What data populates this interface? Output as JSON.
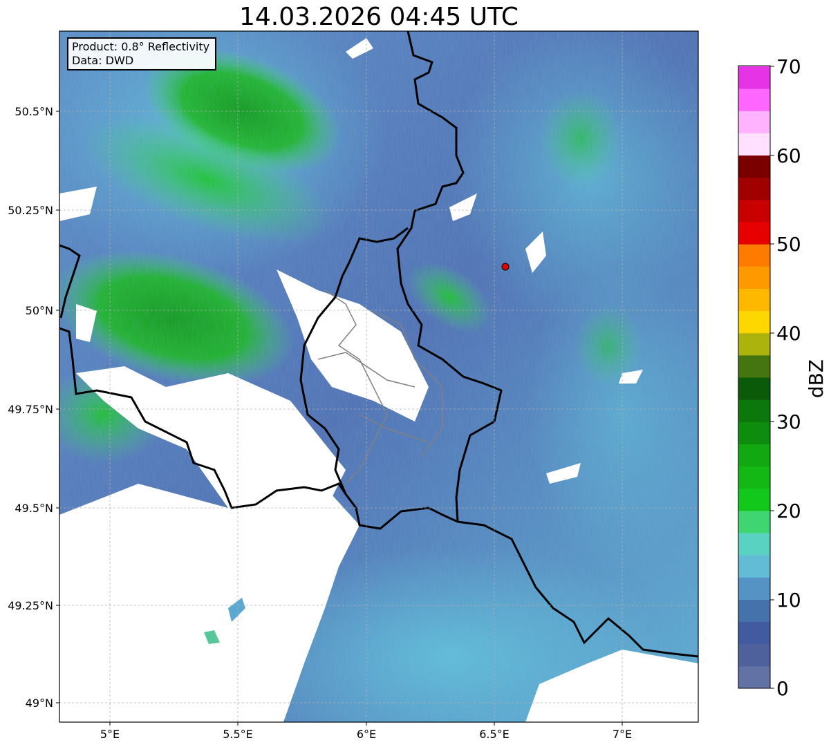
{
  "title": "14.03.2026 04:45 UTC",
  "info": {
    "product": "Product: 0.8° Reflectivity",
    "data": "Data: DWD"
  },
  "axes": {
    "lon_ticks": [
      "5°E",
      "5.5°E",
      "6°E",
      "6.5°E",
      "7°E"
    ],
    "lat_ticks": [
      "50.5°N",
      "50.25°N",
      "50°N",
      "49.75°N",
      "49.5°N",
      "49.25°N",
      "49°N"
    ]
  },
  "colorbar": {
    "label": "dBZ",
    "ticks": [
      "70",
      "60",
      "50",
      "40",
      "30",
      "20",
      "10",
      "0"
    ],
    "colors": [
      "#6272a4",
      "#4f619c",
      "#425aa0",
      "#4672ac",
      "#5593c4",
      "#63bcd6",
      "#5ad2c2",
      "#3fd672",
      "#12c81a",
      "#14b814",
      "#12a812",
      "#0e8c0e",
      "#0c780c",
      "#0a5a0a",
      "#457510",
      "#acb30d",
      "#ffd700",
      "#ffb800",
      "#ff9900",
      "#ff7b00",
      "#e60000",
      "#c80000",
      "#a00000",
      "#7a0000",
      "#ffe1ff",
      "#ffb3ff",
      "#ff66ff",
      "#e633e6"
    ]
  },
  "colors": {
    "border": "#000000",
    "district": "#808080",
    "marker": "#e00000"
  }
}
